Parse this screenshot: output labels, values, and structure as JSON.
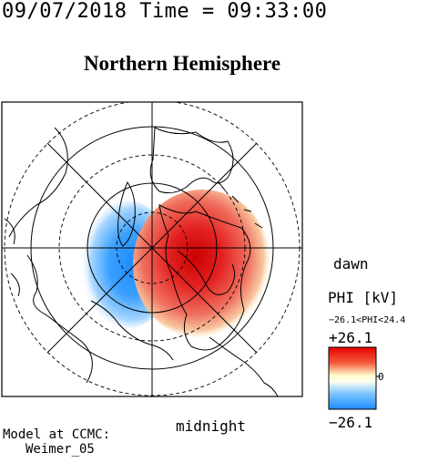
{
  "header": "09/07/2018 Time = 09:33:00",
  "title": "Northern Hemisphere",
  "labels": {
    "dawn": "dawn",
    "midnight": "midnight"
  },
  "colorbar": {
    "quantity": "PHI [kV]",
    "range_text": "−26.1<PHI<24.4",
    "max_label": "+26.1",
    "zero_label": "0",
    "min_label": "−26.1"
  },
  "model": {
    "line1": "Model at CCMC:",
    "line2": "Weimer_05"
  },
  "colors": {
    "positive": "#e60000",
    "negative": "#1e8cff",
    "neutral": "#fff8c8"
  }
}
